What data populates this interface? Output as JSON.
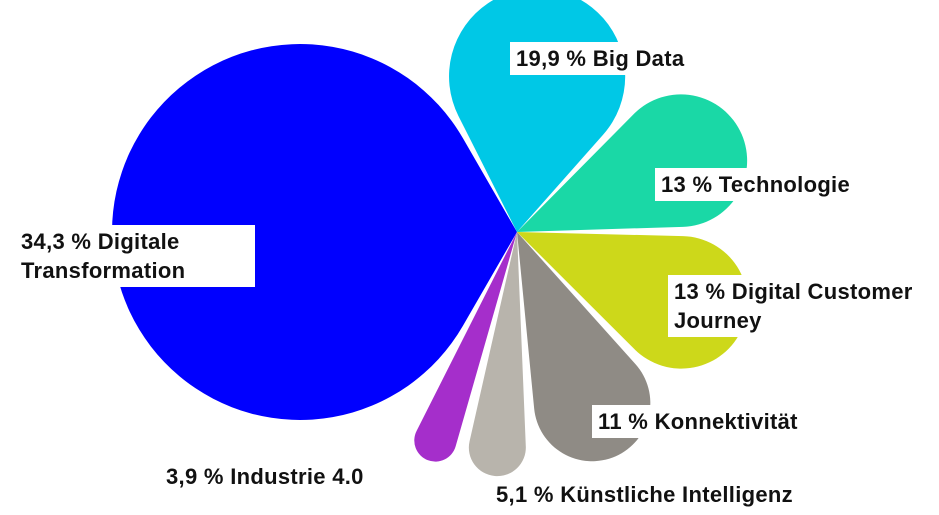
{
  "chart_data": {
    "type": "pie",
    "categories": [
      "Digitale Transformation",
      "Big Data",
      "Technologie",
      "Digital Customer Journey",
      "Konnektivität",
      "Künstliche Intelligenz",
      "Industrie 4.0"
    ],
    "values": [
      34.3,
      19.9,
      13,
      13,
      11,
      5.1,
      3.9
    ],
    "value_labels": [
      "34,3 %",
      "19,9 %",
      "13 %",
      "13 %",
      "11 %",
      "5,1 %",
      "3,9 %"
    ],
    "colors": [
      "#0000ff",
      "#00c8e6",
      "#1ad8a6",
      "#cdd81a",
      "#8f8b85",
      "#b8b4ac",
      "#a52ecb"
    ]
  }
}
